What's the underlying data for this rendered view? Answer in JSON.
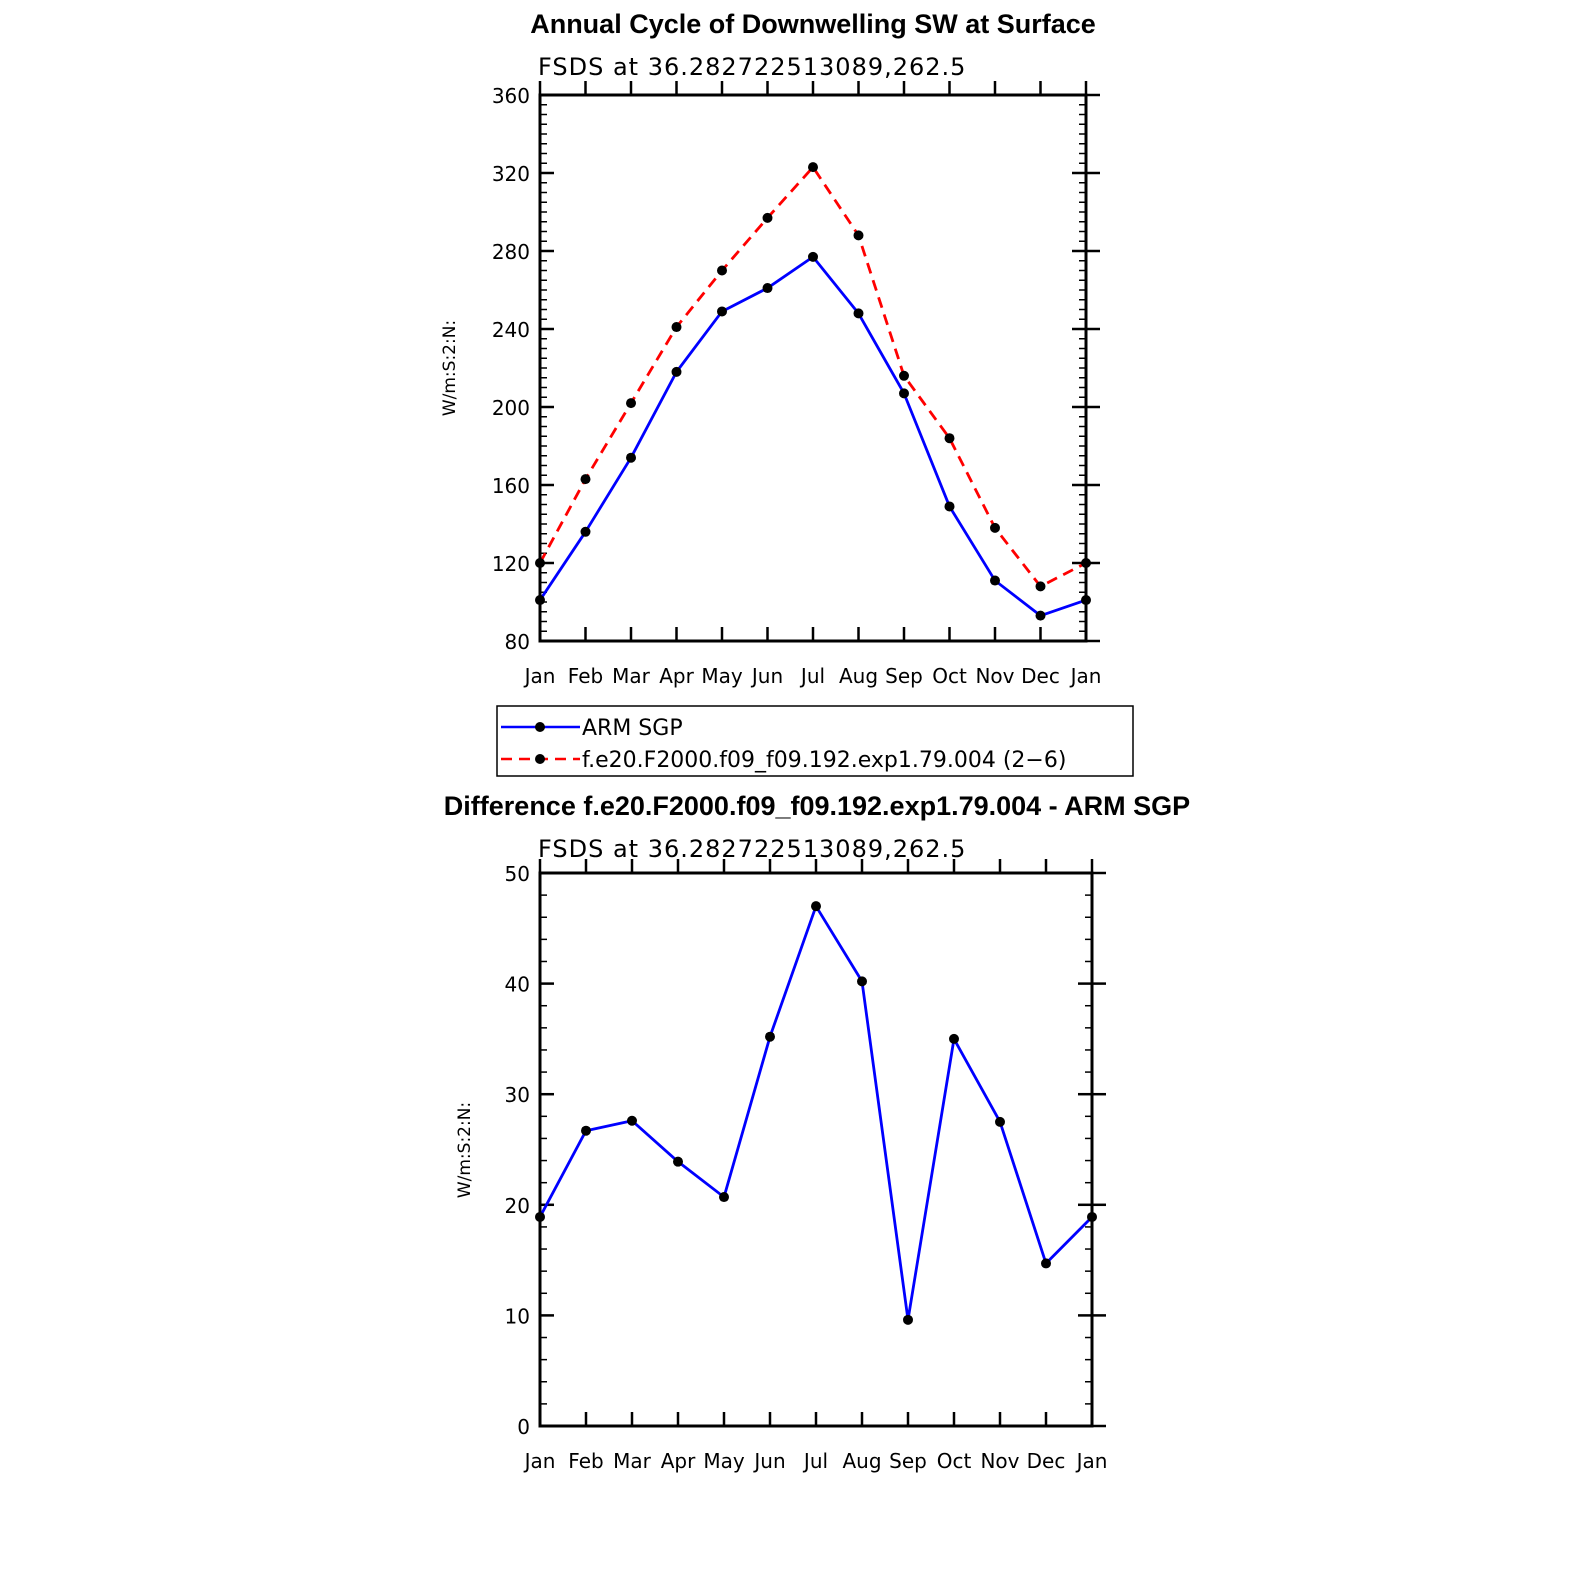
{
  "chart_data": [
    {
      "type": "line",
      "title": "Annual Cycle of Downwelling SW at Surface",
      "subtitle": "FSDS at 36.282722513089,262.5",
      "ylabel": "W/m:S:2:N:",
      "xlabel": "",
      "categories": [
        "Jan",
        "Feb",
        "Mar",
        "Apr",
        "May",
        "Jun",
        "Jul",
        "Aug",
        "Sep",
        "Oct",
        "Nov",
        "Dec",
        "Jan"
      ],
      "ylim": [
        80,
        360
      ],
      "yticks": [
        80,
        120,
        160,
        200,
        240,
        280,
        320,
        360
      ],
      "yminor": 8,
      "grid": false,
      "legend_position": "bottom",
      "series": [
        {
          "name": "ARM SGP",
          "color": "#0000ff",
          "dash": "solid",
          "values": [
            101,
            136,
            174,
            218,
            249,
            261,
            277,
            248,
            207,
            149,
            111,
            93,
            101
          ]
        },
        {
          "name": "f.e20.F2000.f09_f09.192.exp1.79.004 (2−6)",
          "color": "#ff0000",
          "dash": "dashed",
          "values": [
            120,
            163,
            202,
            241,
            270,
            297,
            323,
            288,
            216,
            184,
            138,
            108,
            120
          ]
        }
      ]
    },
    {
      "type": "line",
      "title": "Difference f.e20.F2000.f09_f09.192.exp1.79.004 - ARM SGP",
      "subtitle": "FSDS at 36.282722513089,262.5",
      "ylabel": "W/m:S:2:N:",
      "xlabel": "",
      "categories": [
        "Jan",
        "Feb",
        "Mar",
        "Apr",
        "May",
        "Jun",
        "Jul",
        "Aug",
        "Sep",
        "Oct",
        "Nov",
        "Dec",
        "Jan"
      ],
      "ylim": [
        0,
        50
      ],
      "yticks": [
        0,
        10,
        20,
        30,
        40,
        50
      ],
      "yminor": 5,
      "grid": false,
      "series": [
        {
          "color": "#0000ff",
          "dash": "solid",
          "values": [
            18.9,
            26.7,
            27.6,
            23.9,
            20.7,
            35.2,
            47.0,
            40.2,
            9.6,
            35.0,
            27.5,
            14.7,
            18.9
          ]
        }
      ]
    }
  ]
}
